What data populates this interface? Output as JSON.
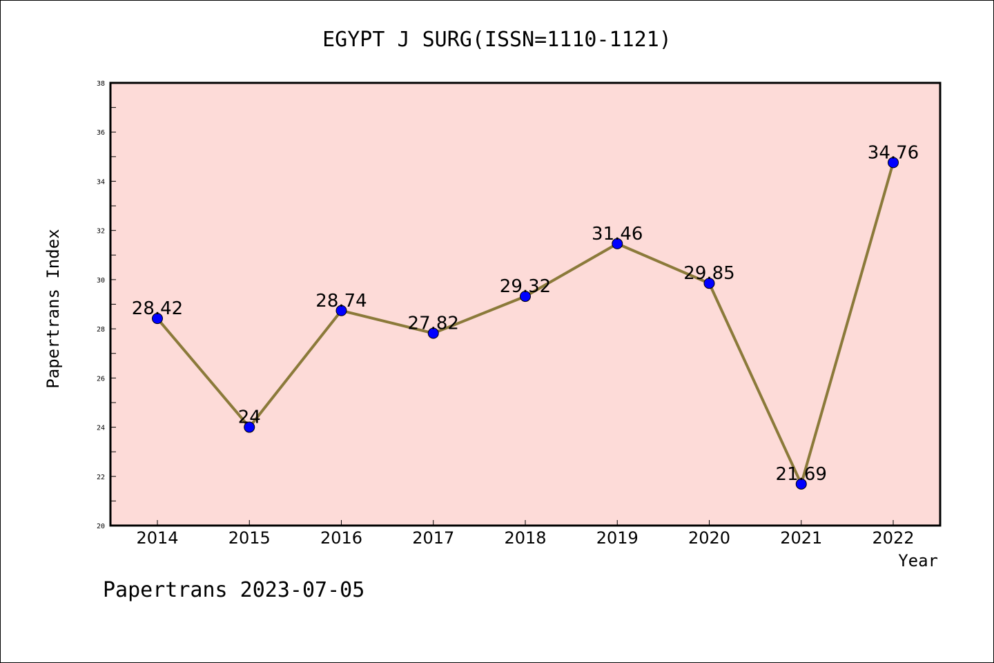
{
  "chart_data": {
    "type": "line",
    "title": "EGYPT J SURG(ISSN=1110-1121)",
    "xlabel": "Year",
    "ylabel": "Papertrans Index",
    "categories": [
      "2014",
      "2015",
      "2016",
      "2017",
      "2018",
      "2019",
      "2020",
      "2021",
      "2022"
    ],
    "series": [
      {
        "values": [
          28.42,
          24,
          28.74,
          27.82,
          29.32,
          31.46,
          29.85,
          21.69,
          34.76
        ],
        "labels": [
          "28.42",
          "24",
          "28.74",
          "27.82",
          "29.32",
          "31.46",
          "29.85",
          "21.69",
          "34.76"
        ]
      }
    ],
    "ylim": [
      20,
      38
    ],
    "yticks": [
      "20",
      "22",
      "24",
      "26",
      "28",
      "30",
      "32",
      "34",
      "36",
      "38"
    ],
    "grid": false,
    "colors": {
      "plot_background": "#fddbd8",
      "line": "#8b7a3a",
      "marker": "#0000ff"
    }
  },
  "footer": {
    "watermark": "Papertrans 2023-07-05"
  }
}
